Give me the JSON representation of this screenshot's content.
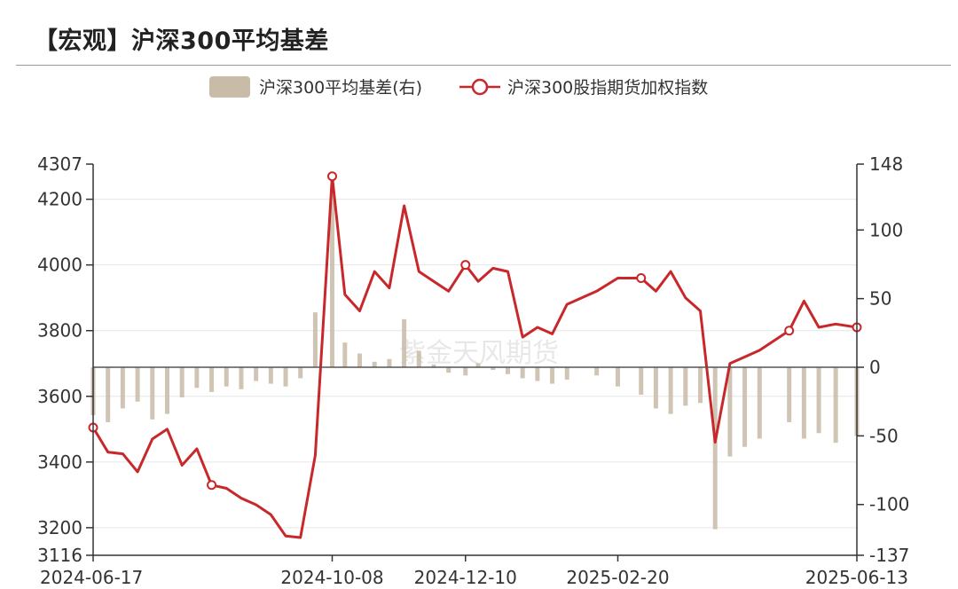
{
  "title": "【宏观】沪深300平均基差",
  "watermark": "紫金天风期货",
  "legend": {
    "bar_label": "沪深300平均基差(右)",
    "line_label": "沪深300股指期货加权指数"
  },
  "colors": {
    "bar": "#c8bba8",
    "line": "#c8282a",
    "axis": "#333333",
    "grid": "#e6e6e6"
  },
  "chart_data": {
    "type": "bar+line",
    "x_tick_labels": [
      "2024-06-17",
      "2024-10-08",
      "2024-12-10",
      "2025-02-20",
      "2025-06-13"
    ],
    "left_axis": {
      "min": 3116,
      "max": 4307,
      "ticks": [
        3116,
        3200,
        3400,
        3600,
        3800,
        4000,
        4200,
        4307
      ]
    },
    "right_axis": {
      "min": -137,
      "max": 148,
      "ticks": [
        -137,
        -100,
        -50,
        0,
        50,
        100,
        148
      ]
    },
    "grid": true,
    "legend_position": "top-center",
    "series": [
      {
        "name": "沪深300平均基差(右)",
        "axis": "right",
        "kind": "bar",
        "x": [
          "2024-06-17",
          "2024-06-24",
          "2024-07-01",
          "2024-07-08",
          "2024-07-15",
          "2024-07-22",
          "2024-07-29",
          "2024-08-05",
          "2024-08-12",
          "2024-08-19",
          "2024-08-26",
          "2024-09-02",
          "2024-09-09",
          "2024-09-16",
          "2024-09-23",
          "2024-09-30",
          "2024-10-08",
          "2024-10-14",
          "2024-10-21",
          "2024-10-28",
          "2024-11-04",
          "2024-11-11",
          "2024-11-18",
          "2024-11-25",
          "2024-12-02",
          "2024-12-10",
          "2024-12-16",
          "2024-12-23",
          "2024-12-30",
          "2025-01-06",
          "2025-01-13",
          "2025-01-20",
          "2025-01-27",
          "2025-02-10",
          "2025-02-20",
          "2025-03-03",
          "2025-03-10",
          "2025-03-17",
          "2025-03-24",
          "2025-03-31",
          "2025-04-07",
          "2025-04-14",
          "2025-04-21",
          "2025-04-28",
          "2025-05-12",
          "2025-05-19",
          "2025-05-26",
          "2025-06-03",
          "2025-06-13"
        ],
        "values": [
          -35,
          -40,
          -30,
          -25,
          -38,
          -34,
          -22,
          -15,
          -18,
          -14,
          -16,
          -10,
          -12,
          -14,
          -8,
          40,
          130,
          18,
          10,
          4,
          6,
          35,
          12,
          2,
          -4,
          -6,
          3,
          -2,
          -5,
          -8,
          -10,
          -12,
          -9,
          -6,
          -14,
          -20,
          -30,
          -34,
          -28,
          -26,
          -118,
          -65,
          -58,
          -52,
          -40,
          -52,
          -48,
          -55,
          -50
        ]
      },
      {
        "name": "沪深300股指期货加权指数",
        "axis": "left",
        "kind": "line",
        "x": [
          "2024-06-17",
          "2024-06-24",
          "2024-07-01",
          "2024-07-08",
          "2024-07-15",
          "2024-07-22",
          "2024-07-29",
          "2024-08-05",
          "2024-08-12",
          "2024-08-19",
          "2024-08-26",
          "2024-09-02",
          "2024-09-09",
          "2024-09-16",
          "2024-09-23",
          "2024-09-30",
          "2024-10-08",
          "2024-10-14",
          "2024-10-21",
          "2024-10-28",
          "2024-11-04",
          "2024-11-11",
          "2024-11-18",
          "2024-11-25",
          "2024-12-02",
          "2024-12-10",
          "2024-12-16",
          "2024-12-23",
          "2024-12-30",
          "2025-01-06",
          "2025-01-13",
          "2025-01-20",
          "2025-01-27",
          "2025-02-10",
          "2025-02-20",
          "2025-03-03",
          "2025-03-10",
          "2025-03-17",
          "2025-03-24",
          "2025-03-31",
          "2025-04-07",
          "2025-04-14",
          "2025-04-21",
          "2025-04-28",
          "2025-05-12",
          "2025-05-19",
          "2025-05-26",
          "2025-06-03",
          "2025-06-13"
        ],
        "values": [
          3505,
          3430,
          3425,
          3370,
          3470,
          3500,
          3390,
          3440,
          3330,
          3320,
          3290,
          3270,
          3240,
          3175,
          3170,
          3420,
          4270,
          3910,
          3860,
          3980,
          3930,
          4180,
          3980,
          3950,
          3920,
          4000,
          3950,
          3990,
          3980,
          3780,
          3810,
          3790,
          3880,
          3920,
          3960,
          3960,
          3920,
          3980,
          3900,
          3860,
          3460,
          3700,
          3720,
          3740,
          3800,
          3890,
          3810,
          3820,
          3810
        ]
      }
    ],
    "markers_on_line": [
      "2024-06-17",
      "2024-08-12",
      "2024-10-08",
      "2024-12-10",
      "2025-03-03",
      "2025-05-12",
      "2025-06-13"
    ]
  }
}
